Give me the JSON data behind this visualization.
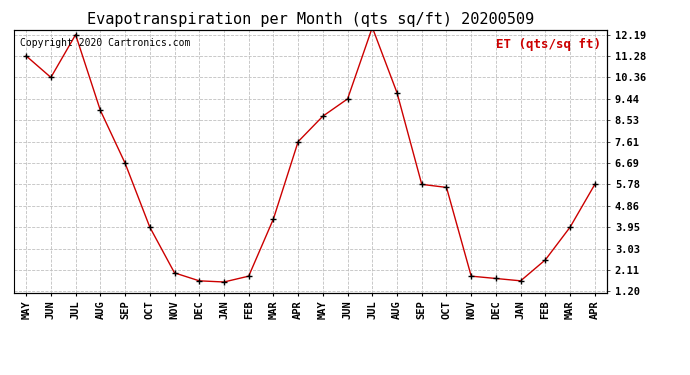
{
  "title": "Evapotranspiration per Month (qts sq/ft) 20200509",
  "ylabel": "ET (qts/sq ft)",
  "copyright": "Copyright 2020 Cartronics.com",
  "months": [
    "MAY",
    "JUN",
    "JUL",
    "AUG",
    "SEP",
    "OCT",
    "NOV",
    "DEC",
    "JAN",
    "FEB",
    "MAR",
    "APR",
    "MAY",
    "JUN",
    "JUL",
    "AUG",
    "SEP",
    "OCT",
    "NOV",
    "DEC",
    "JAN",
    "FEB",
    "MAR",
    "APR"
  ],
  "values": [
    11.28,
    10.36,
    12.19,
    8.95,
    6.69,
    3.95,
    1.99,
    1.65,
    1.6,
    1.85,
    4.3,
    7.61,
    8.7,
    9.44,
    12.5,
    9.7,
    5.78,
    5.65,
    1.85,
    1.75,
    1.65,
    2.55,
    3.95,
    5.78
  ],
  "yticks": [
    1.2,
    2.11,
    3.03,
    3.95,
    4.86,
    5.78,
    6.69,
    7.61,
    8.53,
    9.44,
    10.36,
    11.28,
    12.19
  ],
  "yticklabels": [
    "1.20",
    "2.11",
    "3.03",
    "3.95",
    "4.86",
    "5.78",
    "6.69",
    "7.61",
    "8.53",
    "9.44",
    "10.36",
    "11.28",
    "12.19"
  ],
  "line_color": "#cc0000",
  "marker": "+",
  "grid_color": "#c0c0c0",
  "background_color": "#ffffff",
  "ylabel_color": "#cc0000",
  "title_color": "#000000",
  "copyright_color": "#000000",
  "title_fontsize": 11,
  "ylabel_fontsize": 9,
  "tick_fontsize": 7.5,
  "copyright_fontsize": 7,
  "ymin": 1.2,
  "ymax": 12.19
}
